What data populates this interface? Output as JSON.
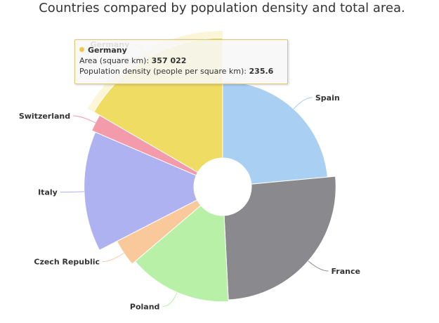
{
  "chart_data": {
    "type": "variable-radius-pie",
    "title": "Countries compared by population density and total area.",
    "series": [
      {
        "name": "countries",
        "points": [
          {
            "name": "Spain",
            "area": 505370,
            "density": 92.9,
            "color": "#a9cff3"
          },
          {
            "name": "France",
            "area": 551500,
            "density": 118.7,
            "color": "#8a8a8e"
          },
          {
            "name": "Poland",
            "area": 312685,
            "density": 124.6,
            "color": "#b8f0a7"
          },
          {
            "name": "Czech Republic",
            "area": 78867,
            "density": 137.5,
            "color": "#f9c99b"
          },
          {
            "name": "Italy",
            "area": 301340,
            "density": 201.8,
            "color": "#aeb2f1"
          },
          {
            "name": "Switzerland",
            "area": 41277,
            "density": 214.5,
            "color": "#f39aab"
          },
          {
            "name": "Germany",
            "area": 357022,
            "density": 235.6,
            "color": "#efdc62"
          }
        ]
      }
    ],
    "hovered": "Germany"
  },
  "tooltip": {
    "country": "Germany",
    "area_label": "Area (square km): ",
    "area_value": "357 022",
    "density_label": "Population density (people per square km): ",
    "density_value": "235.6",
    "dot_color": "#efc94c"
  }
}
